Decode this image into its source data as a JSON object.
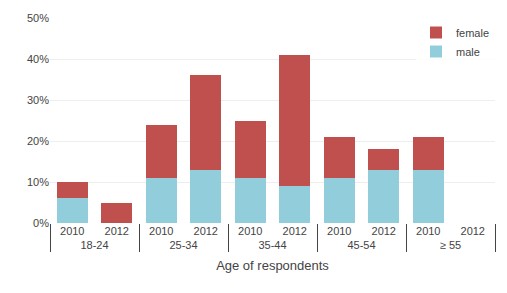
{
  "chart_data": {
    "type": "bar",
    "stacked": true,
    "xlabel": "Age of respondents",
    "categories": [
      [
        "18-24",
        "2010"
      ],
      [
        "18-24",
        "2012"
      ],
      [
        "25-34",
        "2010"
      ],
      [
        "25-34",
        "2012"
      ],
      [
        "35-44",
        "2010"
      ],
      [
        "35-44",
        "2012"
      ],
      [
        "45-54",
        "2010"
      ],
      [
        "45-54",
        "2012"
      ],
      [
        "≥ 55",
        "2010"
      ],
      [
        "≥ 55",
        "2012"
      ]
    ],
    "series": [
      {
        "name": "male",
        "color": "#92cddc",
        "values": [
          6,
          0,
          11,
          13,
          11,
          9,
          11,
          13,
          13,
          0
        ]
      },
      {
        "name": "female",
        "color": "#c0504d",
        "values": [
          4,
          5,
          13,
          23,
          14,
          32,
          10,
          5,
          8,
          0
        ]
      }
    ],
    "ylim": [
      0,
      50
    ],
    "yticks": [
      {
        "value": 0,
        "label": "0%"
      },
      {
        "value": 10,
        "label": "10%"
      },
      {
        "value": 20,
        "label": "20%"
      },
      {
        "value": 30,
        "label": "30%"
      },
      {
        "value": 40,
        "label": "40%"
      },
      {
        "value": 50,
        "label": "50%"
      }
    ],
    "grid": true,
    "legend": "upper right"
  }
}
